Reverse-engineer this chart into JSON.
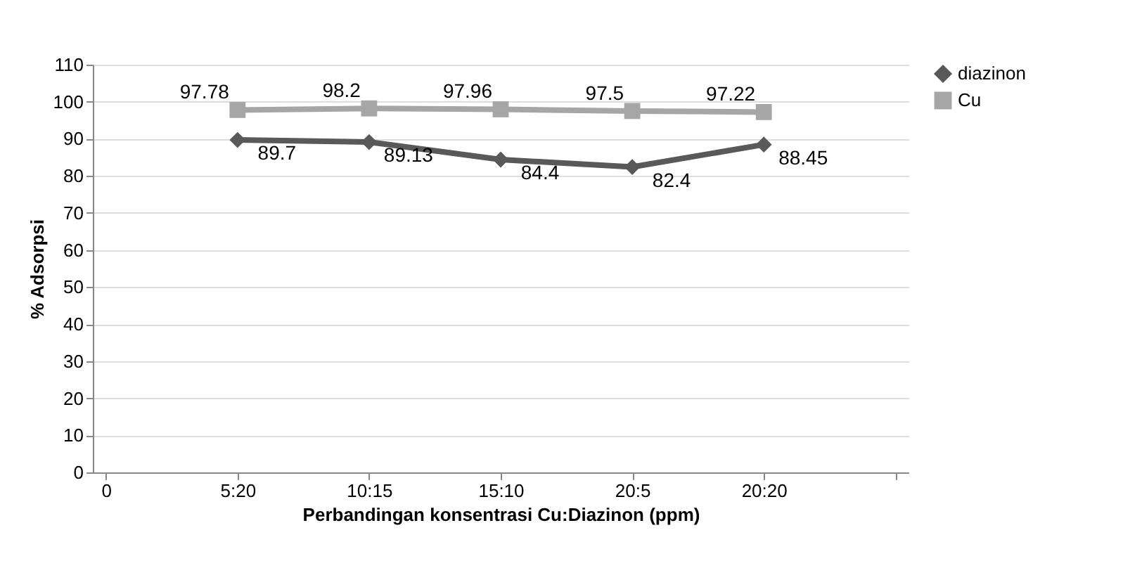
{
  "chart_data": {
    "type": "line",
    "xlabel": "Perbandingan konsentrasi Cu:Diazinon (ppm)",
    "ylabel": "% Adsorpsi",
    "categories": [
      "0",
      "5:20",
      "10:15",
      "15:10",
      "20:5",
      "20:20",
      null
    ],
    "series": [
      {
        "name": "diazinon",
        "color": "#595959",
        "marker": "diamond",
        "values": [
          null,
          89.7,
          89.13,
          84.4,
          82.4,
          88.45,
          null
        ]
      },
      {
        "name": "Cu",
        "color": "#a6a6a6",
        "marker": "square",
        "values": [
          null,
          97.78,
          98.2,
          97.96,
          97.5,
          97.22,
          null
        ]
      }
    ],
    "ylim": [
      0,
      110
    ],
    "yticks": [
      0,
      10,
      20,
      30,
      40,
      50,
      60,
      70,
      80,
      90,
      100,
      110
    ],
    "grid": "y",
    "legend": "right",
    "data_labels": true,
    "line_style": "solid"
  }
}
